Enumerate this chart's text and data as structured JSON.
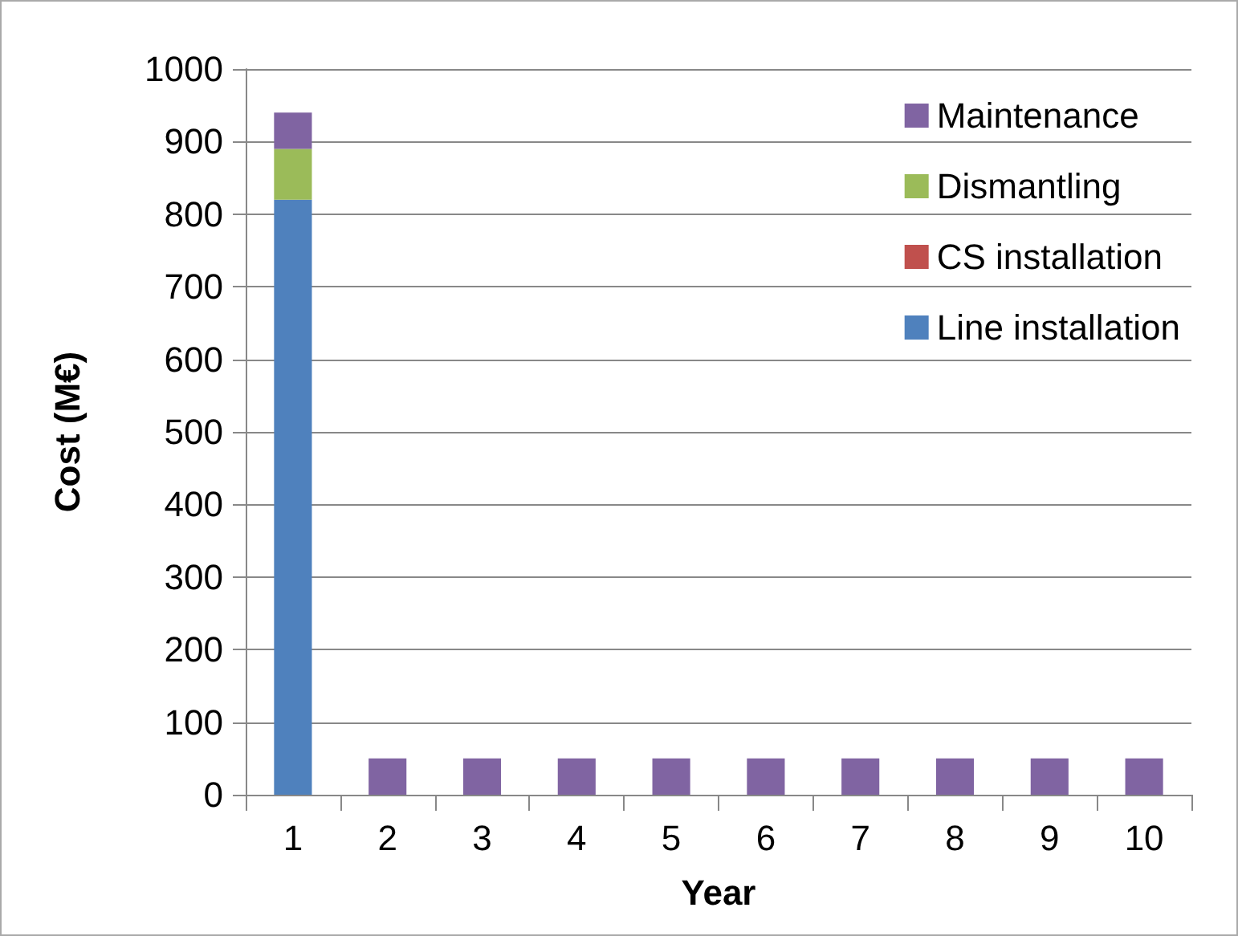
{
  "chart_data": {
    "type": "bar",
    "stacked": true,
    "xlabel": "Year",
    "ylabel": "Cost (M€)",
    "categories": [
      "1",
      "2",
      "3",
      "4",
      "5",
      "6",
      "7",
      "8",
      "9",
      "10"
    ],
    "series": [
      {
        "name": "Line installation",
        "color": "#4f81bd",
        "values": [
          820,
          null,
          null,
          null,
          null,
          null,
          null,
          null,
          null,
          null
        ]
      },
      {
        "name": "CS installation",
        "color": "#c0504d",
        "values": [
          0,
          null,
          null,
          null,
          null,
          null,
          null,
          null,
          null,
          null
        ]
      },
      {
        "name": "Dismantling",
        "color": "#9bbb59",
        "values": [
          70,
          null,
          null,
          null,
          null,
          null,
          null,
          null,
          null,
          null
        ]
      },
      {
        "name": "Maintenance",
        "color": "#8064a2",
        "values": [
          50,
          50,
          50,
          50,
          50,
          50,
          50,
          50,
          50,
          50
        ]
      }
    ],
    "ylim": [
      0,
      1000
    ],
    "yticks": [
      0,
      100,
      200,
      300,
      400,
      500,
      600,
      700,
      800,
      900,
      1000
    ],
    "grid": "y",
    "legend": "top right"
  }
}
